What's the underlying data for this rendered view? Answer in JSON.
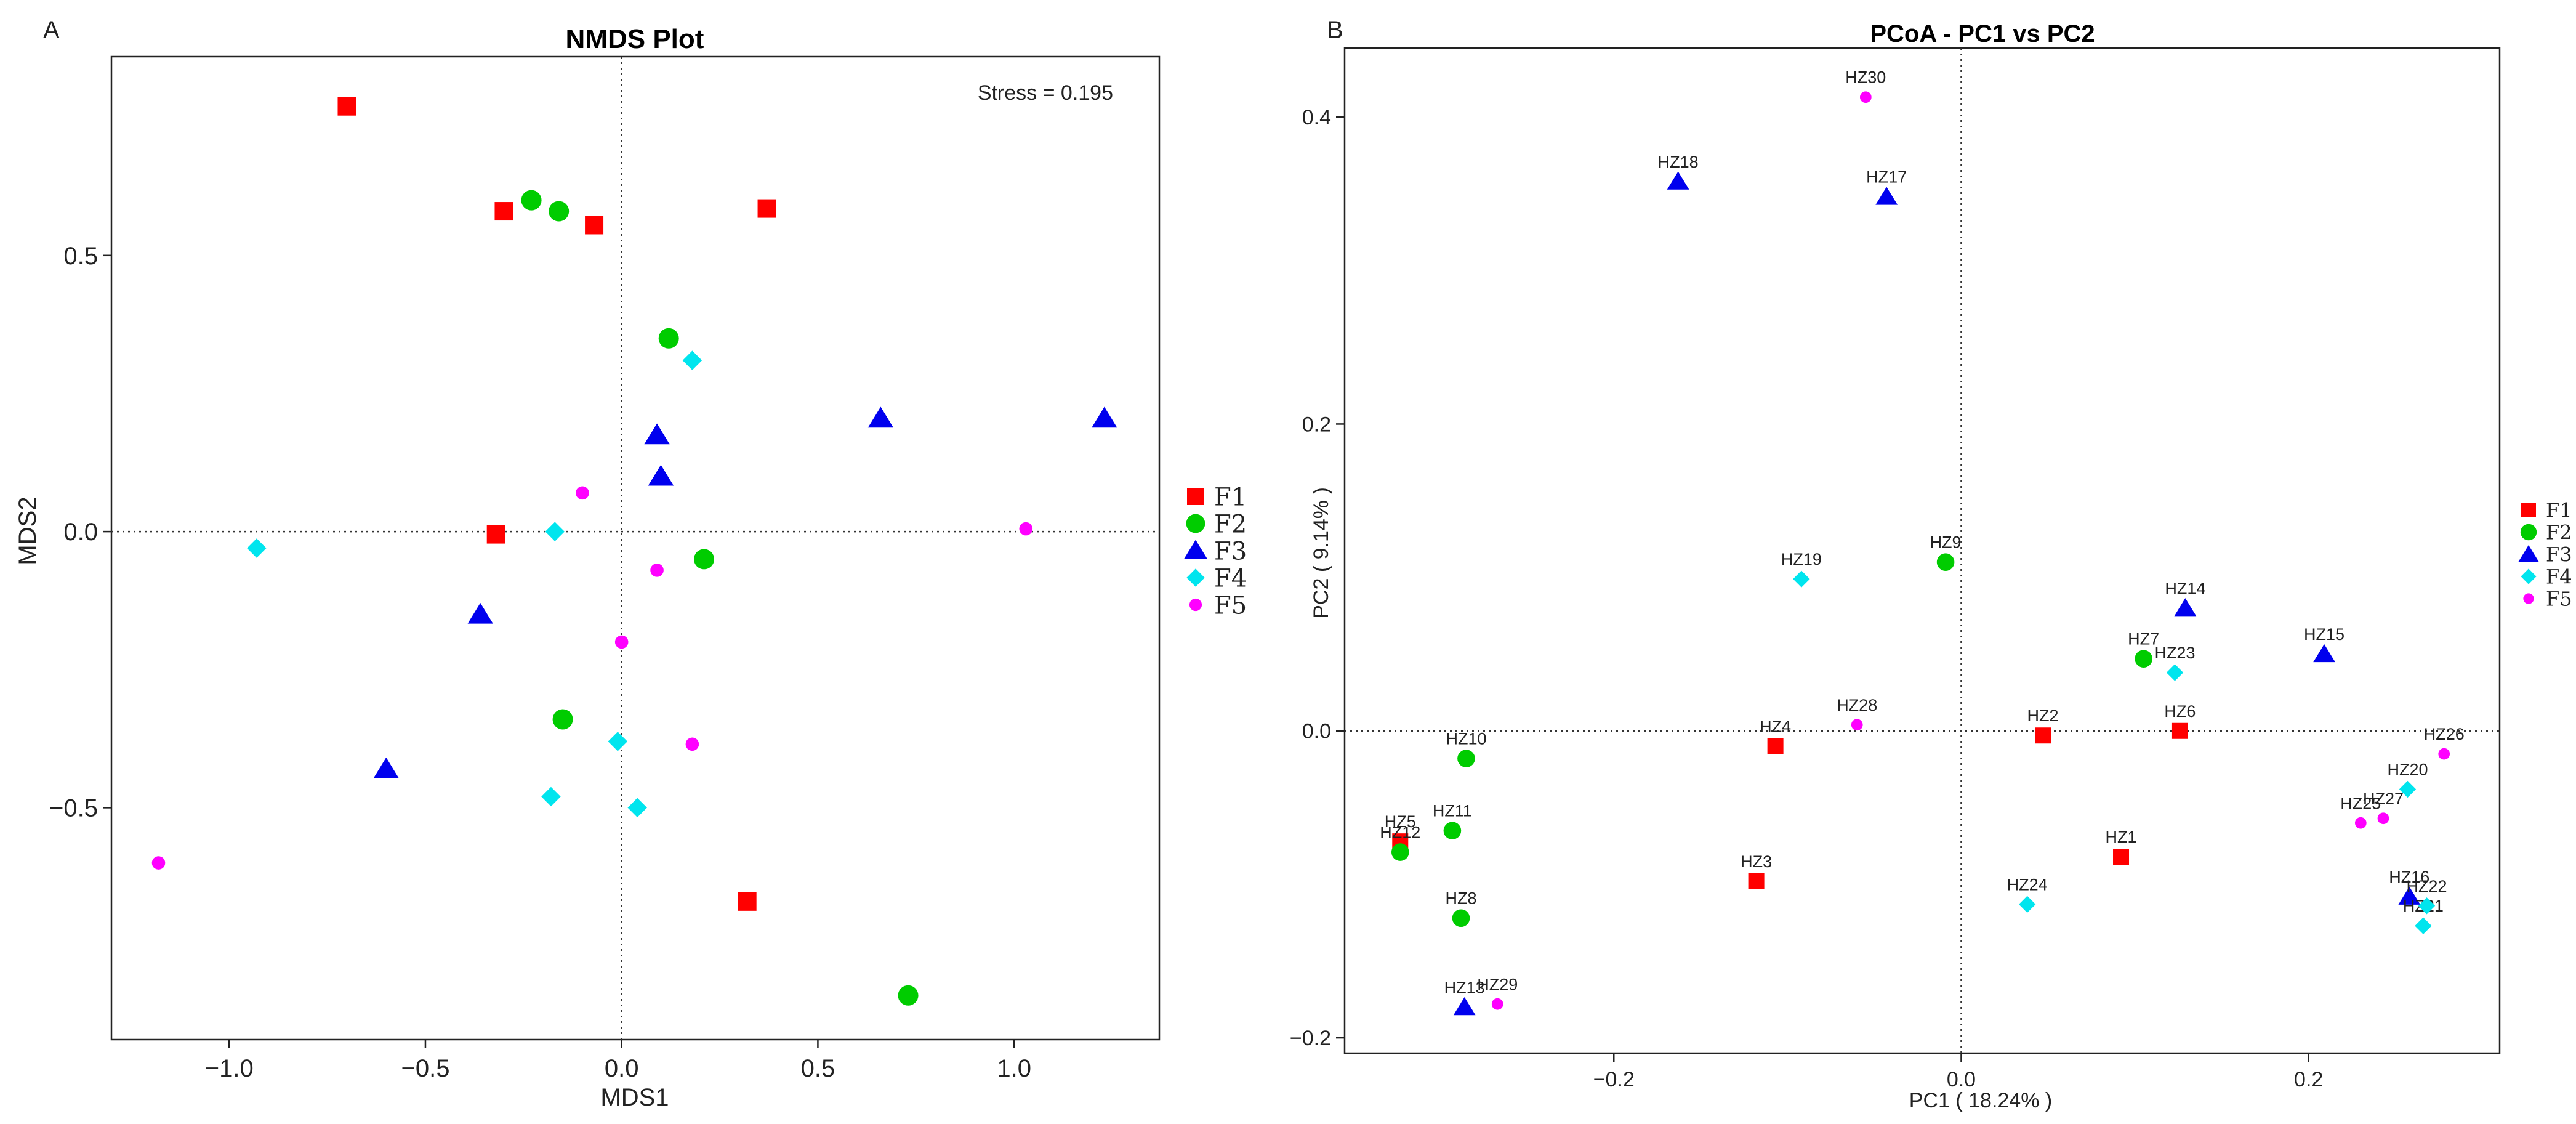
{
  "panels": {
    "A": {
      "letter": "A"
    },
    "B": {
      "letter": "B"
    }
  },
  "chart_data": [
    {
      "id": "nmds",
      "type": "scatter",
      "title": "NMDS Plot",
      "xlabel": "MDS1",
      "ylabel": "MDS2",
      "annotation": "Stress = 0.195",
      "xlim": [
        -1.3,
        1.37
      ],
      "ylim": [
        -0.92,
        0.86
      ],
      "xticks": [
        -1.0,
        -0.5,
        0.0,
        0.5,
        1.0
      ],
      "xtick_labels": [
        "−1.0",
        "−0.5",
        "0.0",
        "0.5",
        "1.0"
      ],
      "yticks": [
        -0.5,
        0.0,
        0.5
      ],
      "ytick_labels": [
        "−0.5",
        "0.0",
        "0.5"
      ],
      "legend": [
        "F1",
        "F2",
        "F3",
        "F4",
        "F5"
      ],
      "series": [
        {
          "name": "F1",
          "marker": "square",
          "color": "#ff0000",
          "points": [
            [
              -0.7,
              0.77
            ],
            [
              -0.3,
              0.58
            ],
            [
              -0.07,
              0.555
            ],
            [
              0.37,
              0.585
            ],
            [
              -0.32,
              -0.005
            ],
            [
              0.32,
              -0.67
            ]
          ]
        },
        {
          "name": "F2",
          "marker": "circle",
          "color": "#00cc00",
          "points": [
            [
              -0.23,
              0.6
            ],
            [
              -0.16,
              0.58
            ],
            [
              0.12,
              0.35
            ],
            [
              0.21,
              -0.05
            ],
            [
              -0.15,
              -0.34
            ],
            [
              0.73,
              -0.84
            ]
          ]
        },
        {
          "name": "F3",
          "marker": "triangle",
          "color": "#0000ee",
          "points": [
            [
              0.09,
              0.175
            ],
            [
              0.1,
              0.1
            ],
            [
              0.66,
              0.205
            ],
            [
              1.23,
              0.205
            ],
            [
              -0.36,
              -0.15
            ],
            [
              -0.6,
              -0.43
            ]
          ]
        },
        {
          "name": "F4",
          "marker": "diamond",
          "color": "#00e5ee",
          "points": [
            [
              0.18,
              0.31
            ],
            [
              -0.17,
              0.0
            ],
            [
              -0.93,
              -0.03
            ],
            [
              -0.01,
              -0.38
            ],
            [
              -0.18,
              -0.48
            ],
            [
              0.04,
              -0.5
            ]
          ]
        },
        {
          "name": "F5",
          "marker": "dot",
          "color": "#ff00ff",
          "points": [
            [
              -0.1,
              0.07
            ],
            [
              0.09,
              -0.07
            ],
            [
              0.0,
              -0.2
            ],
            [
              0.18,
              -0.385
            ],
            [
              1.03,
              0.005
            ],
            [
              -1.18,
              -0.6
            ]
          ]
        }
      ]
    },
    {
      "id": "pcoa",
      "type": "scatter",
      "title": "PCoA - PC1 vs PC2",
      "xlabel": "PC1 ( 18.24% )",
      "ylabel": "PC2 ( 9.14% )",
      "xlim": [
        -0.355,
        0.31
      ],
      "ylim": [
        -0.21,
        0.445
      ],
      "xticks": [
        -0.2,
        0.0,
        0.2
      ],
      "xtick_labels": [
        "−0.2",
        "0.0",
        "0.2"
      ],
      "yticks": [
        -0.2,
        0.0,
        0.2,
        0.4
      ],
      "ytick_labels": [
        "−0.2",
        "0.0",
        "0.2",
        "0.4"
      ],
      "legend": [
        "F1",
        "F2",
        "F3",
        "F4",
        "F5"
      ],
      "series": [
        {
          "name": "F1",
          "marker": "square",
          "color": "#ff0000",
          "points": [
            {
              "x": 0.092,
              "y": -0.082,
              "label": "HZ1"
            },
            {
              "x": 0.047,
              "y": -0.003,
              "label": "HZ2"
            },
            {
              "x": -0.118,
              "y": -0.098,
              "label": "HZ3"
            },
            {
              "x": -0.107,
              "y": -0.01,
              "label": "HZ4"
            },
            {
              "x": -0.323,
              "y": -0.072,
              "label": "HZ5"
            },
            {
              "x": 0.126,
              "y": 0.0,
              "label": "HZ6"
            }
          ]
        },
        {
          "name": "F2",
          "marker": "circle",
          "color": "#00cc00",
          "points": [
            {
              "x": 0.105,
              "y": 0.047,
              "label": "HZ7"
            },
            {
              "x": -0.288,
              "y": -0.122,
              "label": "HZ8"
            },
            {
              "x": -0.009,
              "y": 0.11,
              "label": "HZ9"
            },
            {
              "x": -0.285,
              "y": -0.018,
              "label": "HZ10"
            },
            {
              "x": -0.293,
              "y": -0.065,
              "label": "HZ11"
            },
            {
              "x": -0.323,
              "y": -0.079,
              "label": "HZ12"
            }
          ]
        },
        {
          "name": "F3",
          "marker": "triangle",
          "color": "#0000ee",
          "points": [
            {
              "x": -0.286,
              "y": -0.18,
              "label": "HZ13"
            },
            {
              "x": 0.129,
              "y": 0.08,
              "label": "HZ14"
            },
            {
              "x": 0.209,
              "y": 0.05,
              "label": "HZ15"
            },
            {
              "x": 0.258,
              "y": -0.108,
              "label": "HZ16"
            },
            {
              "x": -0.043,
              "y": 0.348,
              "label": "HZ17"
            },
            {
              "x": -0.163,
              "y": 0.358,
              "label": "HZ18"
            }
          ]
        },
        {
          "name": "F4",
          "marker": "diamond",
          "color": "#00e5ee",
          "points": [
            {
              "x": -0.092,
              "y": 0.099,
              "label": "HZ19"
            },
            {
              "x": 0.257,
              "y": -0.038,
              "label": "HZ20"
            },
            {
              "x": 0.266,
              "y": -0.127,
              "label": "HZ21"
            },
            {
              "x": 0.268,
              "y": -0.114,
              "label": "HZ22"
            },
            {
              "x": 0.123,
              "y": 0.038,
              "label": "HZ23"
            },
            {
              "x": 0.038,
              "y": -0.113,
              "label": "HZ24"
            }
          ]
        },
        {
          "name": "F5",
          "marker": "dot",
          "color": "#ff00ff",
          "points": [
            {
              "x": 0.23,
              "y": -0.06,
              "label": "HZ25"
            },
            {
              "x": 0.278,
              "y": -0.015,
              "label": "HZ26"
            },
            {
              "x": 0.243,
              "y": -0.057,
              "label": "HZ27"
            },
            {
              "x": -0.06,
              "y": 0.004,
              "label": "HZ28"
            },
            {
              "x": -0.267,
              "y": -0.178,
              "label": "HZ29"
            },
            {
              "x": -0.055,
              "y": 0.413,
              "label": "HZ30"
            }
          ]
        }
      ]
    }
  ]
}
